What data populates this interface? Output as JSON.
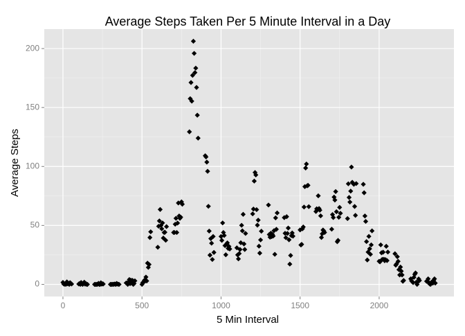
{
  "chart_data": {
    "type": "scatter",
    "title": "Average Steps Taken Per 5 Minute Interval in a Day",
    "xlabel": "5 Min Interval",
    "ylabel": "Average Steps",
    "color": "#000000",
    "grid": true,
    "xlim": [
      -118,
      2473
    ],
    "xticks": [
      0,
      500,
      1000,
      1500,
      2000
    ],
    "ylim": [
      -10.3,
      216.5
    ],
    "yticks": [
      0,
      50,
      100,
      150,
      200
    ],
    "x": [
      0,
      5,
      10,
      15,
      20,
      25,
      30,
      35,
      40,
      45,
      50,
      55,
      100,
      105,
      110,
      115,
      120,
      125,
      130,
      135,
      140,
      145,
      150,
      155,
      200,
      205,
      210,
      215,
      220,
      225,
      230,
      235,
      240,
      245,
      250,
      255,
      300,
      305,
      310,
      315,
      320,
      325,
      330,
      335,
      340,
      345,
      350,
      355,
      400,
      405,
      410,
      415,
      420,
      425,
      430,
      435,
      440,
      445,
      450,
      455,
      500,
      505,
      510,
      515,
      520,
      525,
      530,
      535,
      540,
      545,
      550,
      555,
      600,
      605,
      610,
      615,
      620,
      625,
      630,
      635,
      640,
      645,
      650,
      655,
      700,
      705,
      710,
      715,
      720,
      725,
      730,
      735,
      740,
      745,
      750,
      755,
      800,
      805,
      810,
      815,
      820,
      825,
      830,
      835,
      840,
      845,
      850,
      855,
      900,
      905,
      910,
      915,
      920,
      925,
      930,
      935,
      940,
      945,
      950,
      955,
      1000,
      1005,
      1010,
      1015,
      1020,
      1025,
      1030,
      1035,
      1040,
      1045,
      1050,
      1055,
      1100,
      1105,
      1110,
      1115,
      1120,
      1125,
      1130,
      1135,
      1140,
      1145,
      1150,
      1155,
      1200,
      1205,
      1210,
      1215,
      1220,
      1225,
      1230,
      1235,
      1240,
      1245,
      1250,
      1255,
      1300,
      1305,
      1310,
      1315,
      1320,
      1325,
      1330,
      1335,
      1340,
      1345,
      1350,
      1355,
      1400,
      1405,
      1410,
      1415,
      1420,
      1425,
      1430,
      1435,
      1440,
      1445,
      1450,
      1455,
      1500,
      1505,
      1510,
      1515,
      1520,
      1525,
      1530,
      1535,
      1540,
      1545,
      1550,
      1555,
      1600,
      1605,
      1610,
      1615,
      1620,
      1625,
      1630,
      1635,
      1640,
      1645,
      1650,
      1655,
      1700,
      1705,
      1710,
      1715,
      1720,
      1725,
      1730,
      1735,
      1740,
      1745,
      1750,
      1755,
      1800,
      1805,
      1810,
      1815,
      1820,
      1825,
      1830,
      1835,
      1840,
      1845,
      1850,
      1855,
      1900,
      1905,
      1910,
      1915,
      1920,
      1925,
      1930,
      1935,
      1940,
      1945,
      1950,
      1955,
      2000,
      2005,
      2010,
      2015,
      2020,
      2025,
      2030,
      2035,
      2040,
      2045,
      2050,
      2055,
      2100,
      2105,
      2110,
      2115,
      2120,
      2125,
      2130,
      2135,
      2140,
      2145,
      2150,
      2155,
      2200,
      2205,
      2210,
      2215,
      2220,
      2225,
      2230,
      2235,
      2240,
      2245,
      2250,
      2255,
      2300,
      2305,
      2310,
      2315,
      2320,
      2325,
      2330,
      2335,
      2340,
      2345,
      2350,
      2355
    ],
    "values": [
      1.7,
      0.3,
      0.1,
      0.2,
      0.1,
      2.1,
      0.5,
      0.9,
      0,
      1.5,
      0.8,
      0.3,
      0.3,
      0.7,
      0,
      1.6,
      0.4,
      0,
      1.1,
      1.8,
      0.2,
      0.7,
      0,
      0,
      0,
      0,
      0,
      0,
      0.2,
      0.9,
      0,
      0,
      1.4,
      0.2,
      0.5,
      0.3,
      0,
      0,
      0,
      0.1,
      0,
      0.3,
      0.2,
      0,
      0.8,
      0.3,
      0.1,
      0,
      1.2,
      0.9,
      0,
      2.2,
      4.1,
      0.6,
      3.5,
      1.1,
      3.4,
      0,
      0.7,
      3,
      0,
      1.5,
      1.8,
      3.4,
      2.8,
      6.2,
      2.9,
      18,
      14.4,
      16.9,
      39.7,
      44.6,
      31.5,
      49.3,
      53.8,
      63.5,
      50,
      47.1,
      52.1,
      39.3,
      44,
      44.2,
      37.4,
      49,
      44,
      44,
      51,
      56,
      44,
      52,
      69,
      58,
      56,
      57,
      70,
      68,
      129.4,
      157.5,
      171.2,
      155.4,
      177.3,
      206.2,
      195.9,
      179.6,
      183.4,
      167,
      143.5,
      124,
      109.1,
      108.1,
      103.7,
      95.9,
      66.2,
      45.2,
      24.8,
      38.8,
      34.9,
      21.1,
      40.6,
      27.1,
      40.6,
      37.3,
      52.1,
      44,
      41.5,
      32.9,
      25.1,
      34.3,
      35.2,
      30.5,
      32.2,
      30,
      31,
      25,
      21.6,
      26.1,
      29.6,
      35.3,
      50.1,
      45.4,
      59.4,
      34.3,
      29.6,
      43.2,
      59.8,
      63.9,
      87.6,
      94.9,
      92.8,
      63.4,
      50.2,
      54.5,
      32.4,
      26.5,
      37.7,
      45.1,
      67.3,
      42.3,
      40,
      43.4,
      40.5,
      42.4,
      41,
      45.5,
      25.5,
      56.4,
      46.7,
      60.6,
      56.6,
      43.3,
      39.6,
      57.4,
      43.2,
      47.8,
      37.8,
      17.2,
      24.5,
      41.3,
      43.6,
      40.9,
      46.2,
      33.4,
      33.9,
      47.1,
      48.7,
      65.6,
      82.9,
      98.7,
      102.1,
      83.6,
      84,
      65.9,
      61.8,
      64.1,
      63.5,
      75.1,
      64.3,
      62.9,
      58.1,
      39.8,
      42.9,
      46.1,
      45.3,
      44,
      46.8,
      59.2,
      56.7,
      74,
      71.5,
      78.7,
      61.6,
      36.2,
      37.3,
      56.9,
      65.3,
      60.3,
      55.8,
      85.3,
      73.7,
      69.8,
      79.1,
      99.5,
      86.6,
      85.6,
      84.9,
      66.1,
      58.5,
      85.5,
      84.9,
      77.7,
      58,
      53.4,
      36.3,
      20.7,
      27.4,
      40.7,
      30.2,
      25.5,
      33.5,
      45.4,
      19.6,
      19.1,
      33.5,
      26.8,
      21.2,
      27.3,
      21.3,
      20,
      21,
      32.3,
      20.2,
      27.4,
      26,
      16.3,
      17.3,
      23.5,
      19.5,
      12.5,
      8,
      14.7,
      11.2,
      8,
      2.6,
      3.3,
      4.7,
      3,
      2.2,
      1.5,
      6,
      8.5,
      9.7,
      1.8,
      0,
      2.2,
      4.6,
      3.3,
      2.6,
      2.5,
      4.7,
      1.5,
      0.3,
      0,
      1.6,
      2.2,
      1.1,
      3.4,
      4.7,
      1.1
    ]
  }
}
